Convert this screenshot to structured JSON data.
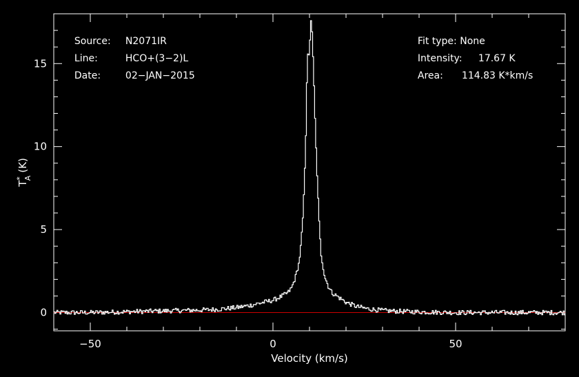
{
  "header_left": {
    "source_label": "Source:",
    "source_value": "N2071IR",
    "line_label": "Line:",
    "line_value": "HCO+(3−2)L",
    "date_label": "Date:",
    "date_value": "02−JAN−2015"
  },
  "header_right": {
    "fit_label": "Fit type:",
    "fit_value": "None",
    "intensity_label": "Intensity:",
    "intensity_value": "17.67 K",
    "area_label": "Area:",
    "area_value": "114.83 K*km/s"
  },
  "colors": {
    "background": "#000000",
    "foreground": "#ffffff",
    "baseline": "#cc0000"
  },
  "chart_data": {
    "type": "line",
    "style": "step",
    "xlabel": "Velocity (km/s)",
    "ylabel_main": "T",
    "ylabel_sup": "*",
    "ylabel_sub": "A",
    "ylabel_unit": "(K)",
    "xlim": [
      -60,
      80
    ],
    "ylim": [
      -1.1,
      18
    ],
    "xticks": [
      -50,
      0,
      50
    ],
    "yticks": [
      0,
      5,
      10,
      15
    ],
    "xtick_labels": [
      "−50",
      "0",
      "50"
    ],
    "ytick_labels": [
      "0",
      "5",
      "10",
      "15"
    ],
    "baseline_y": 0,
    "peak": {
      "x": 10.3,
      "y": 17.67
    },
    "spectrum": {
      "x": [
        -60,
        -50,
        -40,
        -30,
        -20,
        -15,
        -10,
        -6,
        -3,
        0,
        2,
        4,
        5,
        6,
        7,
        7.5,
        8,
        8.5,
        9,
        9.3,
        9.6,
        9.9,
        10.3,
        10.6,
        11,
        11.5,
        12,
        12.5,
        13,
        14,
        15,
        16,
        18,
        20,
        23,
        26,
        30,
        35,
        40,
        50,
        60,
        70,
        80
      ],
      "y": [
        0.0,
        0.0,
        0.05,
        0.1,
        0.15,
        0.2,
        0.3,
        0.45,
        0.6,
        0.75,
        0.95,
        1.2,
        1.5,
        2.1,
        3.0,
        4.0,
        5.5,
        8.0,
        11.5,
        15.9,
        15.2,
        16.0,
        17.67,
        16.8,
        14.5,
        11.0,
        8.0,
        5.5,
        3.6,
        2.2,
        1.6,
        1.2,
        0.9,
        0.6,
        0.35,
        0.22,
        0.12,
        0.07,
        0.04,
        0.0,
        0.0,
        0.0,
        0.0
      ]
    },
    "grid": false,
    "legend": "none"
  }
}
